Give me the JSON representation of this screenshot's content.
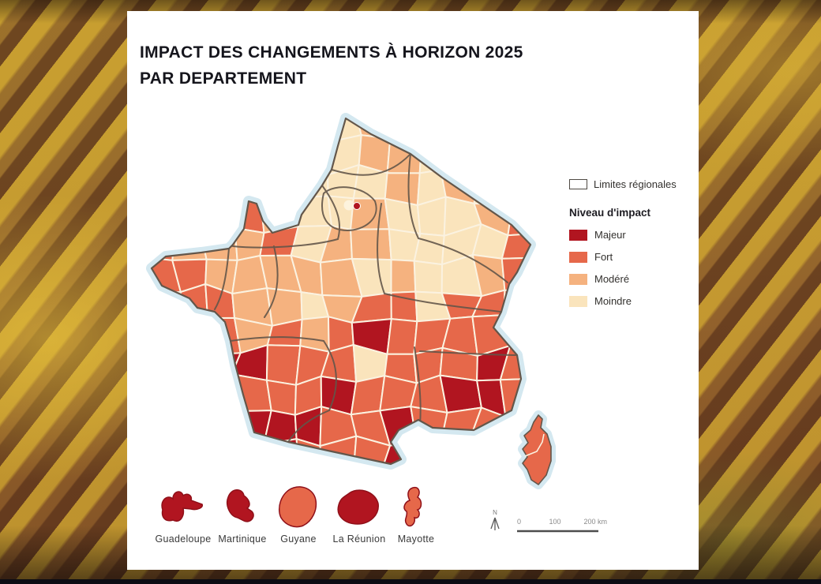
{
  "title": {
    "line1": "IMPACT DES CHANGEMENTS À HORIZON 2025",
    "line2": "PAR DEPARTEMENT"
  },
  "legend": {
    "regional_limits_label": "Limites régionales",
    "impact_title": "Niveau d'impact",
    "levels": [
      {
        "key": "M",
        "label": "Majeur",
        "color": "#b11520"
      },
      {
        "key": "f",
        "label": "Fort",
        "color": "#e6684a"
      },
      {
        "key": "o",
        "label": "Modéré",
        "color": "#f5b27f"
      },
      {
        "key": "m",
        "label": "Moindre",
        "color": "#fae4bc"
      }
    ]
  },
  "map": {
    "sea_halo_color": "#d4e8f0",
    "region_border_color": "#63564a",
    "department_border_color": "#fbf2e0",
    "level_colors": {
      "M": "#b11520",
      "f": "#e6684a",
      "o": "#f5b27f",
      "m": "#fae4bc",
      ".": "#fae4bc"
    },
    "paris_level": "Majeur",
    "corsica_level": "Fort",
    "grid": [
      "......mo.......",
      ".....mmoom.....",
      ".....mmmomo....",
      "...fommommmof..",
      "fooofmoommmmf..",
      "ffooooomommof..",
      ".ffoomoffmfff..",
      "..fofofMfffff..",
      "..MMfffmfffMf..",
      "..MfffMfffMMf..",
      "...MMMffMffff..",
      "...MMfffMM....."
    ]
  },
  "territories": [
    {
      "name": "Guadeloupe",
      "level": "Majeur"
    },
    {
      "name": "Martinique",
      "level": "Majeur"
    },
    {
      "name": "Guyane",
      "level": "Fort"
    },
    {
      "name": "La Réunion",
      "level": "Majeur"
    },
    {
      "name": "Mayotte",
      "level": "Fort"
    }
  ],
  "scale_bar": {
    "north_label": "N",
    "ticks": [
      "0",
      "100",
      "200 km"
    ]
  }
}
